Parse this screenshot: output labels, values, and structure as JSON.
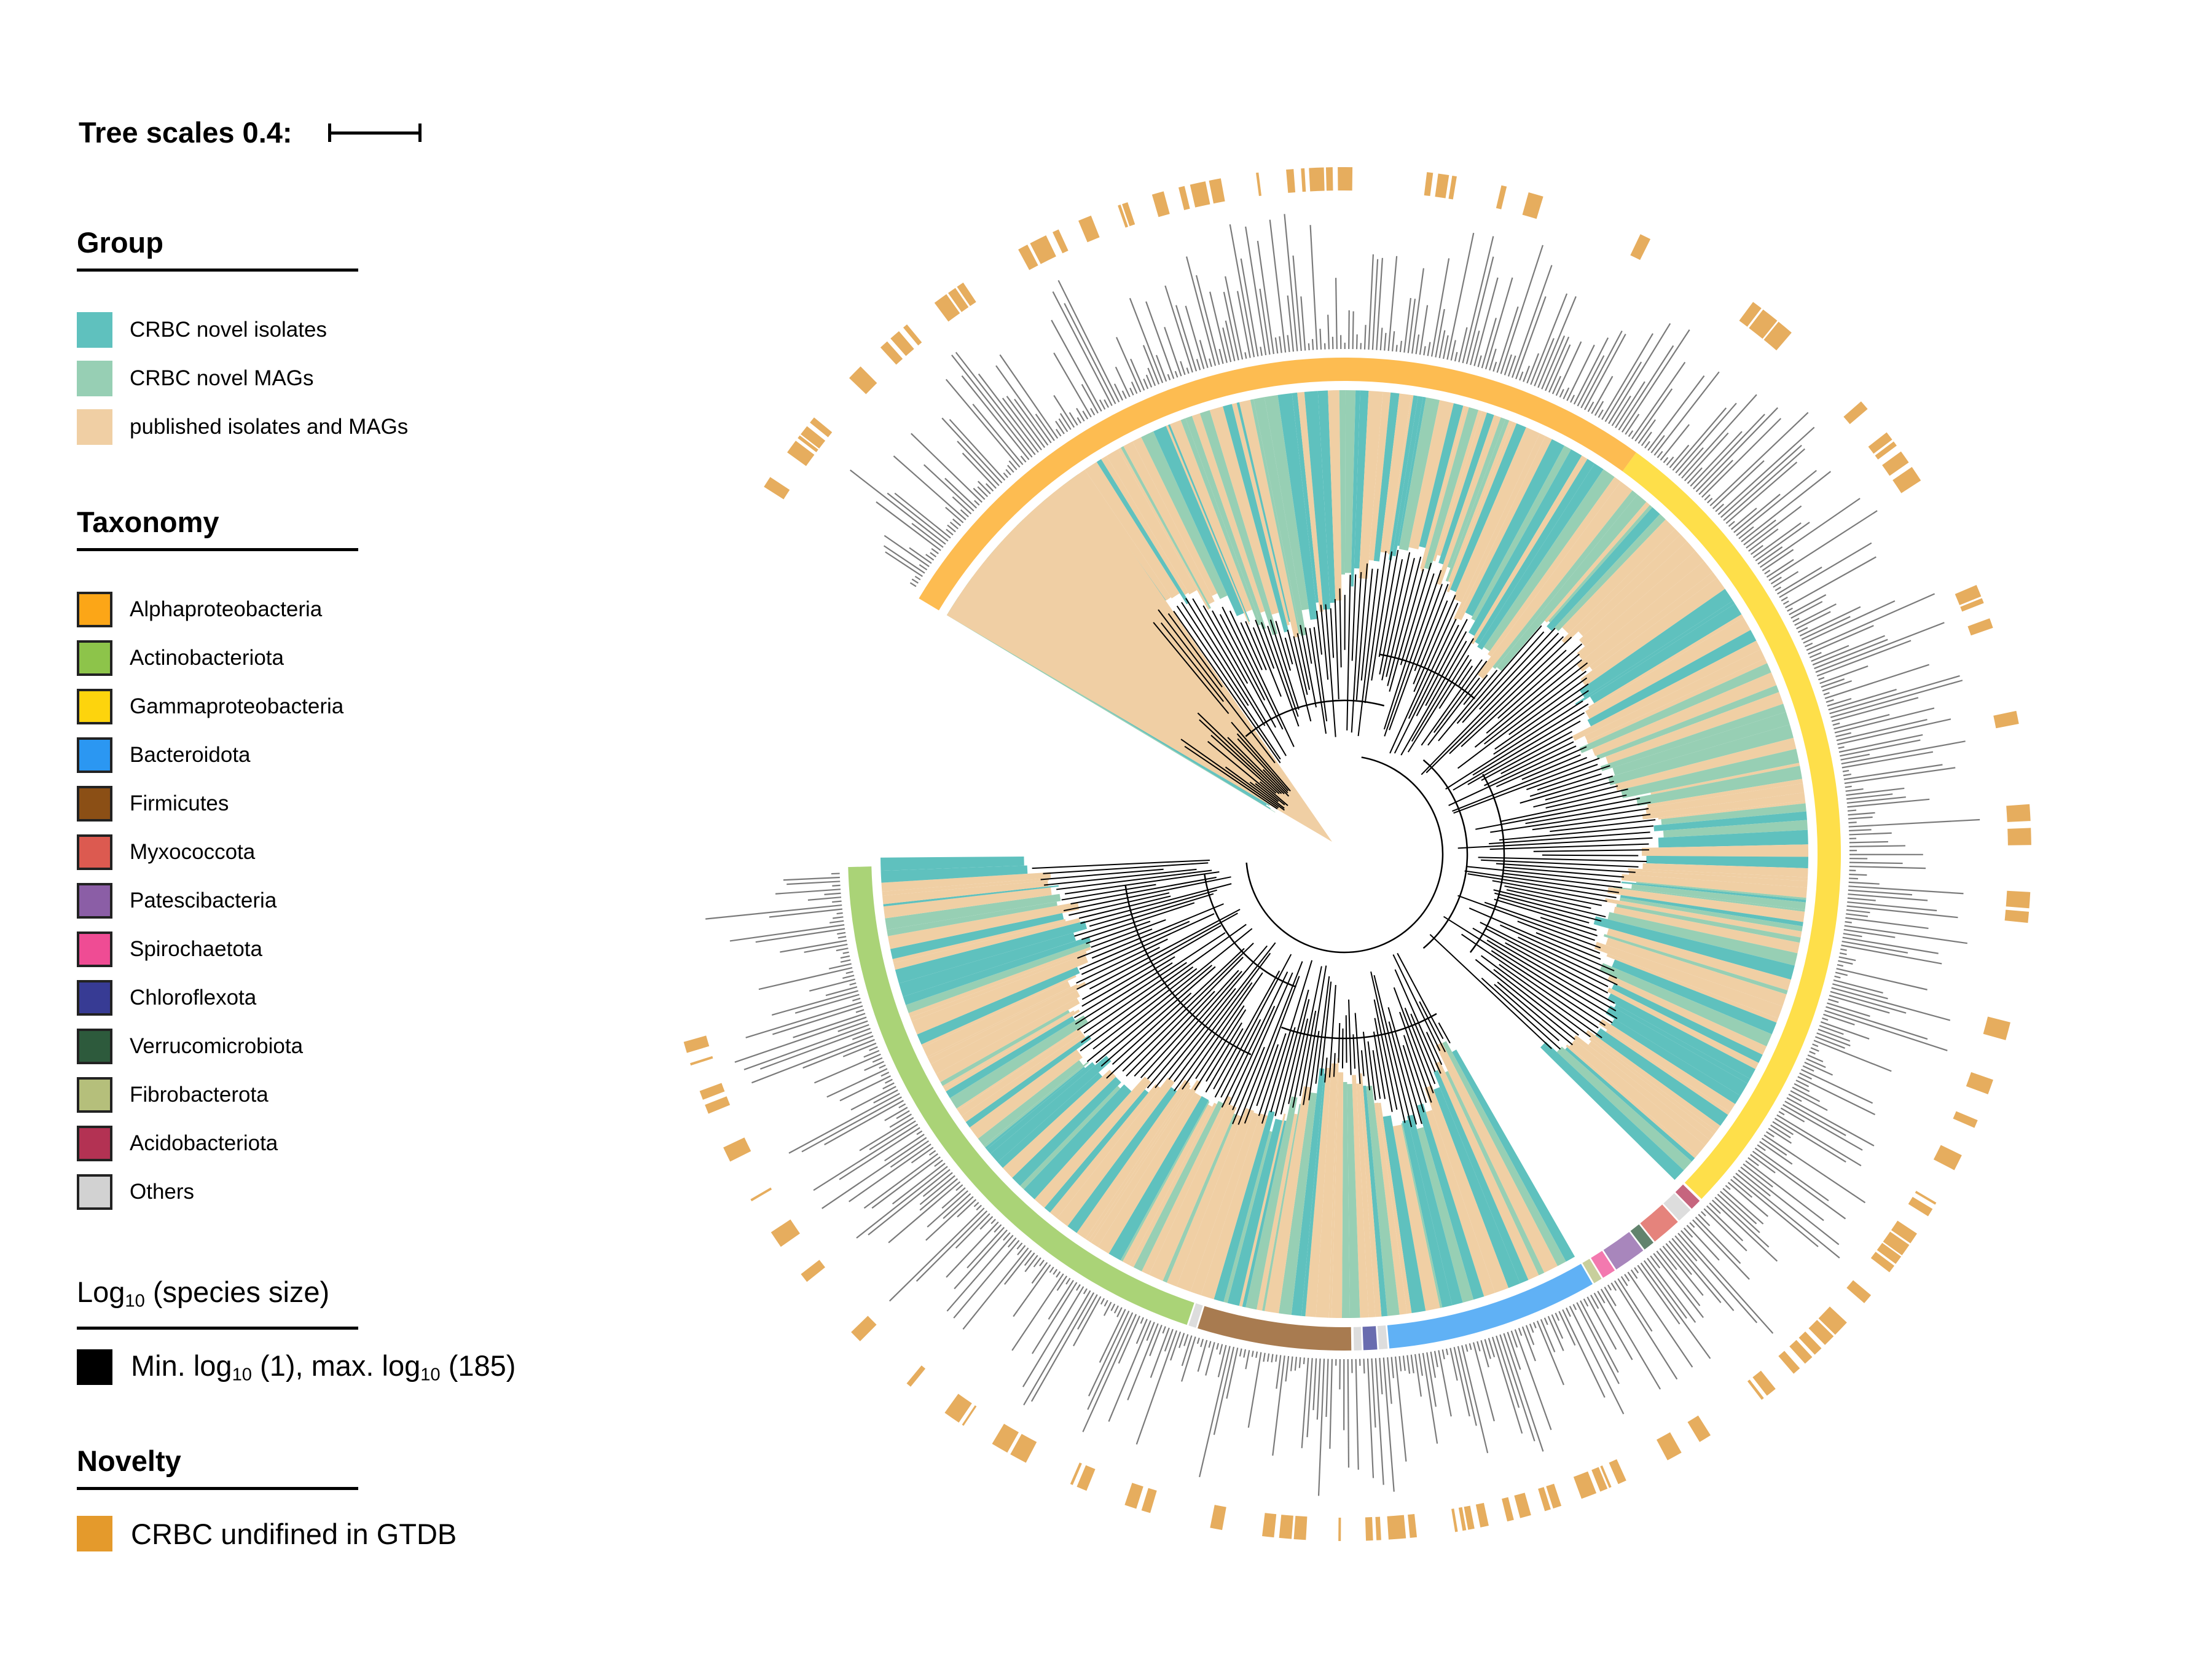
{
  "tree_scale": {
    "label": "Tree scales 0.4:"
  },
  "group": {
    "title": "Group",
    "items": [
      {
        "label": "CRBC novel isolates",
        "color": "#5fc1be"
      },
      {
        "label": "CRBC novel MAGs",
        "color": "#97cfb4"
      },
      {
        "label": "published isolates and MAGs",
        "color": "#f0cfa4"
      }
    ]
  },
  "taxonomy": {
    "title": "Taxonomy",
    "items": [
      {
        "label": "Alphaproteobacteria",
        "color": "#fca617"
      },
      {
        "label": "Actinobacteriota",
        "color": "#8dc44a"
      },
      {
        "label": "Gammaproteobacteria",
        "color": "#fdd40d"
      },
      {
        "label": "Bacteroidota",
        "color": "#2b97f2"
      },
      {
        "label": "Firmicutes",
        "color": "#8b4f15"
      },
      {
        "label": "Myxococcota",
        "color": "#dc5a50"
      },
      {
        "label": "Patescibacteria",
        "color": "#8b5ea6"
      },
      {
        "label": "Spirochaetota",
        "color": "#ef4c94"
      },
      {
        "label": "Chloroflexota",
        "color": "#373b94"
      },
      {
        "label": "Verrucomicrobiota",
        "color": "#2d5a3c"
      },
      {
        "label": "Fibrobacterota",
        "color": "#b5bf7b"
      },
      {
        "label": "Acidobacteriota",
        "color": "#b33253"
      },
      {
        "label": "Others",
        "color": "#d2d2d2"
      }
    ]
  },
  "species_size": {
    "title_main": "Log",
    "title_sub": "10",
    "title_rest": " (species size)",
    "legend_parts": [
      "Min. log",
      "10",
      " (1), max. log",
      "10",
      " (185)"
    ],
    "color": "#000000"
  },
  "novelty": {
    "title": "Novelty",
    "items": [
      {
        "label": "CRBC undifined in GTDB",
        "color": "#e49a2c"
      }
    ]
  },
  "ring_colors": {
    "bar": "#7a7a7a",
    "novelty": "#e6ad5e",
    "branch": "#000000"
  }
}
